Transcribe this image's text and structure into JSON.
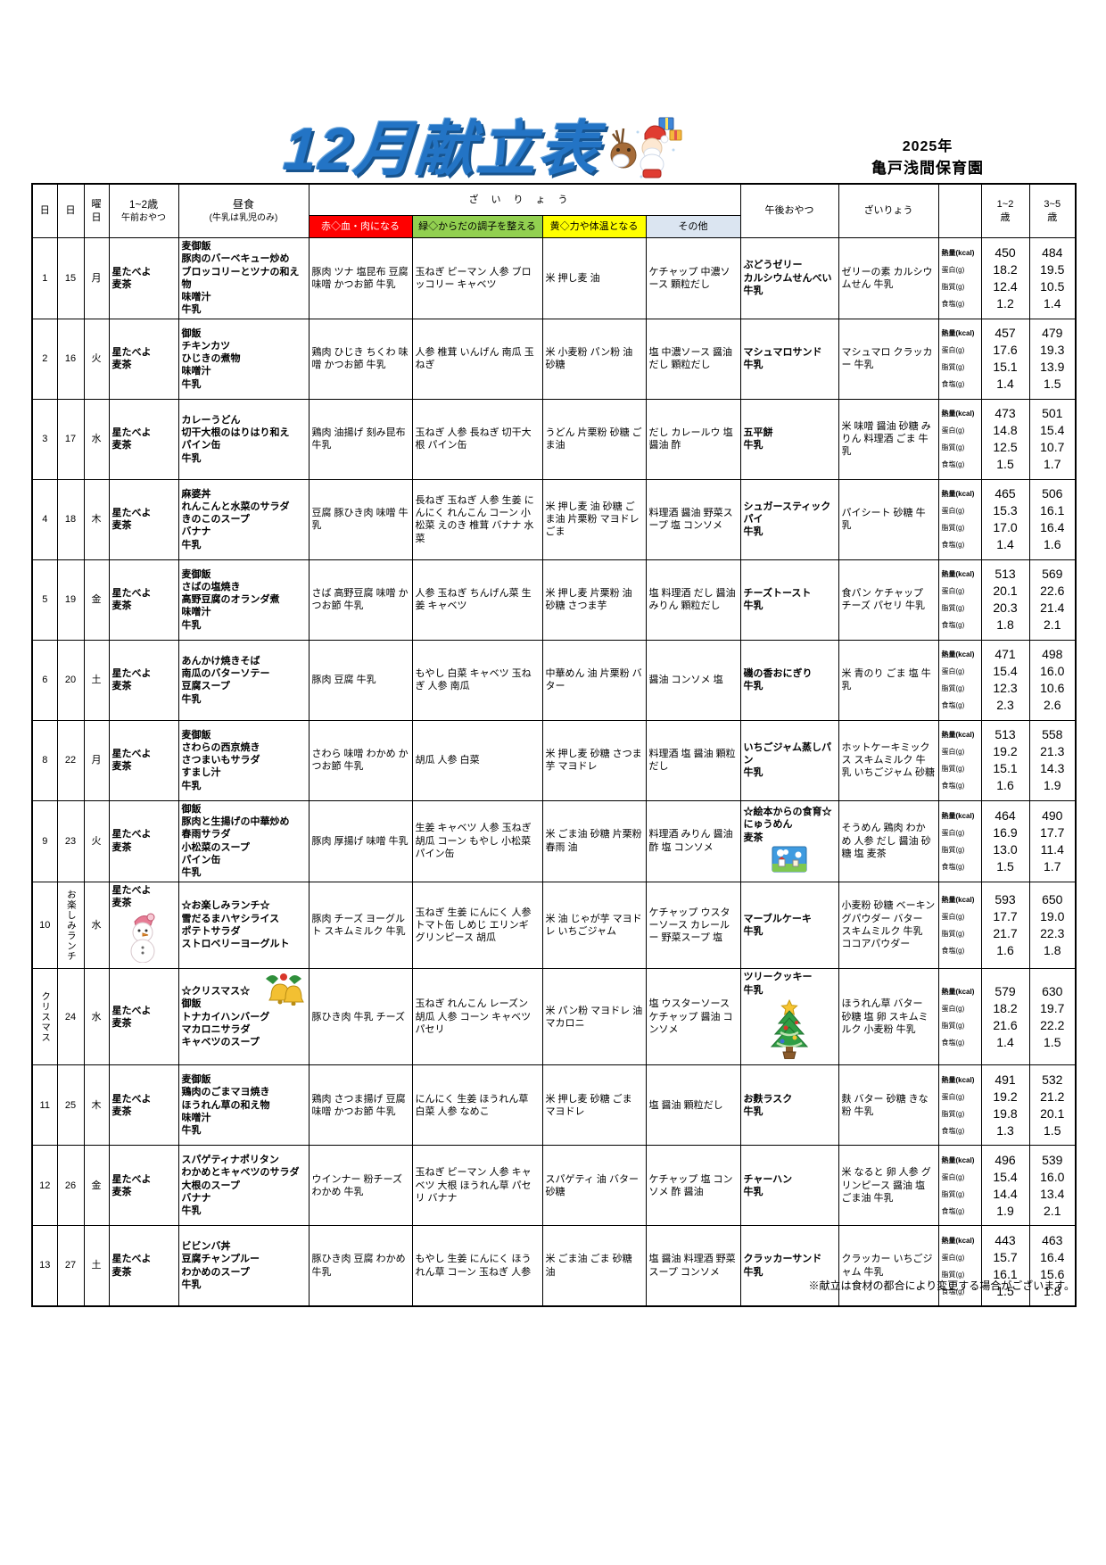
{
  "title": "12月献立表",
  "year": "2025年",
  "school": "亀戸浅間保育園",
  "footer_note": "※献立は食材の都合により変更する場合がございます。",
  "colors": {
    "title_blue": "#2374c5",
    "red_header": "#ff0000",
    "green_header": "#92d050",
    "yellow_header": "#ffff00",
    "other_header": "#dbe5f1"
  },
  "header": {
    "col_no": "日",
    "col_date": "日",
    "col_day": "曜\n日",
    "col_am_1": "1~2歳",
    "col_am_2": "午前おやつ",
    "col_lunch_1": "昼食",
    "col_lunch_2": "(牛乳は乳児のみ)",
    "col_ing_group": "ざいりょう",
    "col_red": "赤◇血・肉になる",
    "col_green": "緑◇からだの調子を整える",
    "col_yellow": "黄◇力や体温となる",
    "col_other": "その他",
    "col_pm": "午後おやつ",
    "col_pm_ing": "ざいりょう",
    "col_age12": "1~2\n歳",
    "col_age35": "3~5\n歳"
  },
  "nutrition_labels": [
    "熱量(kcal)",
    "蛋白(g)",
    "脂質(g)",
    "食塩(g)"
  ],
  "rows": [
    {
      "no": "1",
      "date": "15",
      "day": "月",
      "am": "星たべよ\n麦茶",
      "lunch": "麦御飯\n豚肉のバーベキュー炒め\nブロッコリーとツナの和え物\n味噌汁\n牛乳",
      "red": "豚肉 ツナ 塩昆布 豆腐 味噌 かつお節 牛乳",
      "green": "玉ねぎ ピーマン 人参 ブロッコリー キャベツ",
      "yellow": "米 押し麦 油",
      "other": "ケチャップ 中濃ソース 顆粒だし",
      "pm": "ぶどうゼリー\nカルシウムせんべい\n牛乳",
      "pm_ing": "ゼリーの素 カルシウムせん 牛乳",
      "age12": [
        "450",
        "18.2",
        "12.4",
        "1.2"
      ],
      "age35": [
        "484",
        "19.5",
        "10.5",
        "1.4"
      ]
    },
    {
      "no": "2",
      "date": "16",
      "day": "火",
      "am": "星たべよ\n麦茶",
      "lunch": "御飯\nチキンカツ\nひじきの煮物\n味噌汁\n牛乳",
      "red": "鶏肉 ひじき ちくわ 味噌 かつお節 牛乳",
      "green": "人参 椎茸 いんげん 南瓜 玉ねぎ",
      "yellow": "米 小麦粉 パン粉 油 砂糖",
      "other": "塩 中濃ソース 醤油 だし 顆粒だし",
      "pm": "マシュマロサンド\n牛乳",
      "pm_ing": "マシュマロ クラッカー 牛乳",
      "age12": [
        "457",
        "17.6",
        "15.1",
        "1.4"
      ],
      "age35": [
        "479",
        "19.3",
        "13.9",
        "1.5"
      ]
    },
    {
      "no": "3",
      "date": "17",
      "day": "水",
      "am": "星たべよ\n麦茶",
      "lunch": "カレーうどん\n切干大根のはりはり和え\nパイン缶\n牛乳",
      "red": "鶏肉 油揚げ 刻み昆布 牛乳",
      "green": "玉ねぎ 人参 長ねぎ 切干大根 パイン缶",
      "yellow": "うどん 片栗粉 砂糖 ごま油",
      "other": "だし カレールウ 塩 醤油 酢",
      "pm": "五平餅\n牛乳",
      "pm_ing": "米 味噌 醤油 砂糖 みりん 料理酒 ごま 牛乳",
      "age12": [
        "473",
        "14.8",
        "12.5",
        "1.5"
      ],
      "age35": [
        "501",
        "15.4",
        "10.7",
        "1.7"
      ]
    },
    {
      "no": "4",
      "date": "18",
      "day": "木",
      "am": "星たべよ\n麦茶",
      "lunch": "麻婆丼\nれんこんと水菜のサラダ\nきのこのスープ\nバナナ\n牛乳",
      "red": "豆腐 豚ひき肉 味噌 牛乳",
      "green": "長ねぎ 玉ねぎ 人参 生姜 にんにく れんこん コーン 小松菜 えのき 椎茸 バナナ 水菜",
      "yellow": "米 押し麦 油 砂糖 ごま油 片栗粉 マヨドレ ごま",
      "other": "料理酒 醤油 野菜スープ 塩 コンソメ",
      "pm": "シュガースティックパイ\n牛乳",
      "pm_ing": "パイシート 砂糖 牛乳",
      "age12": [
        "465",
        "15.3",
        "17.0",
        "1.4"
      ],
      "age35": [
        "506",
        "16.1",
        "16.4",
        "1.6"
      ]
    },
    {
      "no": "5",
      "date": "19",
      "day": "金",
      "am": "星たべよ\n麦茶",
      "lunch": "麦御飯\nさばの塩焼き\n高野豆腐のオランダ煮\n味噌汁\n牛乳",
      "red": "さば 高野豆腐 味噌 かつお節 牛乳",
      "green": "人参 玉ねぎ ちんげん菜 生姜 キャベツ",
      "yellow": "米 押し麦 片栗粉 油 砂糖 さつま芋",
      "other": "塩 料理酒 だし 醤油 みりん 顆粒だし",
      "pm": "チーズトースト\n牛乳",
      "pm_ing": "食パン ケチャップ チーズ パセリ 牛乳",
      "age12": [
        "513",
        "20.1",
        "20.3",
        "1.8"
      ],
      "age35": [
        "569",
        "22.6",
        "21.4",
        "2.1"
      ]
    },
    {
      "no": "6",
      "date": "20",
      "day": "土",
      "am": "星たべよ\n麦茶",
      "lunch": "あんかけ焼きそば\n南瓜のバターソテー\n豆腐スープ\n牛乳",
      "red": "豚肉 豆腐 牛乳",
      "green": "もやし 白菜 キャベツ 玉ねぎ 人参 南瓜",
      "yellow": "中華めん 油 片栗粉 バター",
      "other": "醤油 コンソメ 塩",
      "pm": "磯の香おにぎり\n牛乳",
      "pm_ing": "米 青のり ごま 塩 牛乳",
      "age12": [
        "471",
        "15.4",
        "12.3",
        "2.3"
      ],
      "age35": [
        "498",
        "16.0",
        "10.6",
        "2.6"
      ]
    },
    {
      "no": "8",
      "date": "22",
      "day": "月",
      "am": "星たべよ\n麦茶",
      "lunch": "麦御飯\nさわらの西京焼き\nさつまいもサラダ\nすまし汁\n牛乳",
      "red": "さわら 味噌 わかめ かつお節 牛乳",
      "green": "胡瓜 人参 白菜",
      "yellow": "米 押し麦 砂糖 さつま芋 マヨドレ",
      "other": "料理酒 塩 醤油 顆粒だし",
      "pm": "いちごジャム蒸しパン\n牛乳",
      "pm_ing": "ホットケーキミックス スキムミルク 牛乳 いちごジャム 砂糖",
      "age12": [
        "513",
        "19.2",
        "15.1",
        "1.6"
      ],
      "age35": [
        "558",
        "21.3",
        "14.3",
        "1.9"
      ]
    },
    {
      "no": "9",
      "date": "23",
      "day": "火",
      "am": "星たべよ\n麦茶",
      "lunch": "御飯\n豚肉と生揚げの中華炒め\n春雨サラダ\n小松菜のスープ\nパイン缶\n牛乳",
      "red": "豚肉 厚揚げ 味噌 牛乳",
      "green": "生姜 キャベツ 人参 玉ねぎ 胡瓜 コーン もやし 小松菜 パイン缶",
      "yellow": "米 ごま油 砂糖 片栗粉 春雨 油",
      "other": "料理酒 みりん 醤油 酢 塩 コンソメ",
      "pm": "☆絵本からの食育☆\nにゅうめん\n麦茶",
      "pm_ing": "そうめん 鶏肉 わかめ 人参 だし 醤油 砂糖 塩 麦茶",
      "icons": {
        "pm": "book"
      },
      "age12": [
        "464",
        "16.9",
        "13.0",
        "1.5"
      ],
      "age35": [
        "490",
        "17.7",
        "11.4",
        "1.7"
      ]
    },
    {
      "no": "10",
      "date": "お楽しみランチ",
      "day": "水",
      "am": "星たべよ\n麦茶",
      "lunch": "☆お楽しみランチ☆\n雪だるまハヤシライス\nポテトサラダ\nストロベリーヨーグルト",
      "red": "豚肉 チーズ ヨーグルト スキムミルク 牛乳",
      "green": "玉ねぎ 生姜 にんにく 人参 トマト缶 しめじ エリンギ グリンピース 胡瓜",
      "yellow": "米 油 じゃが芋 マヨドレ いちごジャム",
      "other": "ケチャップ ウスターソース カレールー 野菜スープ 塩",
      "pm": "マーブルケーキ\n牛乳",
      "pm_ing": "小麦粉 砂糖 ベーキングパウダー バター スキムミルク 牛乳 ココアパウダー",
      "icons": {
        "am": "snowman"
      },
      "age12": [
        "593",
        "17.7",
        "21.7",
        "1.6"
      ],
      "age35": [
        "650",
        "19.0",
        "22.3",
        "1.8"
      ]
    },
    {
      "no": "クリスマス",
      "date": "24",
      "day": "水",
      "am": "星たべよ\n麦茶",
      "lunch": "☆クリスマス☆\n御飯\nトナカイハンバーグ\nマカロニサラダ\nキャベツのスープ",
      "red": "豚ひき肉 牛乳 チーズ",
      "green": "玉ねぎ れんこん レーズン 胡瓜 人参 コーン キャベツ パセリ",
      "yellow": "米 パン粉 マヨドレ 油 マカロニ",
      "other": "塩 ウスターソース ケチャップ 醤油 コンソメ",
      "pm": "ツリークッキー\n牛乳",
      "pm_ing": "ほうれん草 バター 砂糖 塩 卵 スキムミルク 小麦粉 牛乳",
      "icons": {
        "lunch": "bells",
        "pm": "tree"
      },
      "age12": [
        "579",
        "18.2",
        "21.6",
        "1.4"
      ],
      "age35": [
        "630",
        "19.7",
        "22.2",
        "1.5"
      ]
    },
    {
      "no": "11",
      "date": "25",
      "day": "木",
      "am": "星たべよ\n麦茶",
      "lunch": "麦御飯\n鶏肉のごまマヨ焼き\nほうれん草の和え物\n味噌汁\n牛乳",
      "red": "鶏肉 さつま揚げ 豆腐 味噌 かつお節 牛乳",
      "green": "にんにく 生姜 ほうれん草 白菜 人参 なめこ",
      "yellow": "米 押し麦 砂糖 ごま マヨドレ",
      "other": "塩 醤油 顆粒だし",
      "pm": "お麩ラスク\n牛乳",
      "pm_ing": "麩 バター 砂糖 きな粉 牛乳",
      "age12": [
        "491",
        "19.2",
        "19.8",
        "1.3"
      ],
      "age35": [
        "532",
        "21.2",
        "20.1",
        "1.5"
      ]
    },
    {
      "no": "12",
      "date": "26",
      "day": "金",
      "am": "星たべよ\n麦茶",
      "lunch": "スパゲティナポリタン\nわかめとキャベツのサラダ\n大根のスープ\nバナナ\n牛乳",
      "red": "ウインナー 粉チーズ わかめ 牛乳",
      "green": "玉ねぎ ピーマン 人参 キャベツ 大根 ほうれん草 パセリ バナナ",
      "yellow": "スパゲティ 油 バター 砂糖",
      "other": "ケチャップ 塩 コンソメ 酢 醤油",
      "pm": "チャーハン\n牛乳",
      "pm_ing": "米 なると 卵 人参 グリンピース 醤油 塩 ごま油 牛乳",
      "age12": [
        "496",
        "15.4",
        "14.4",
        "1.9"
      ],
      "age35": [
        "539",
        "16.0",
        "13.4",
        "2.1"
      ]
    },
    {
      "no": "13",
      "date": "27",
      "day": "土",
      "am": "星たべよ\n麦茶",
      "lunch": "ビビンバ丼\n豆腐チャンプルー\nわかめのスープ\n牛乳",
      "red": "豚ひき肉 豆腐 わかめ 牛乳",
      "green": "もやし 生姜 にんにく ほうれん草 コーン 玉ねぎ 人参",
      "yellow": "米 ごま油 ごま 砂糖 油",
      "other": "塩 醤油 料理酒 野菜スープ コンソメ",
      "pm": "クラッカーサンド\n牛乳",
      "pm_ing": "クラッカー いちごジャム 牛乳",
      "age12": [
        "443",
        "15.7",
        "16.1",
        "1.5"
      ],
      "age35": [
        "463",
        "16.4",
        "15.6",
        "1.8"
      ]
    }
  ]
}
